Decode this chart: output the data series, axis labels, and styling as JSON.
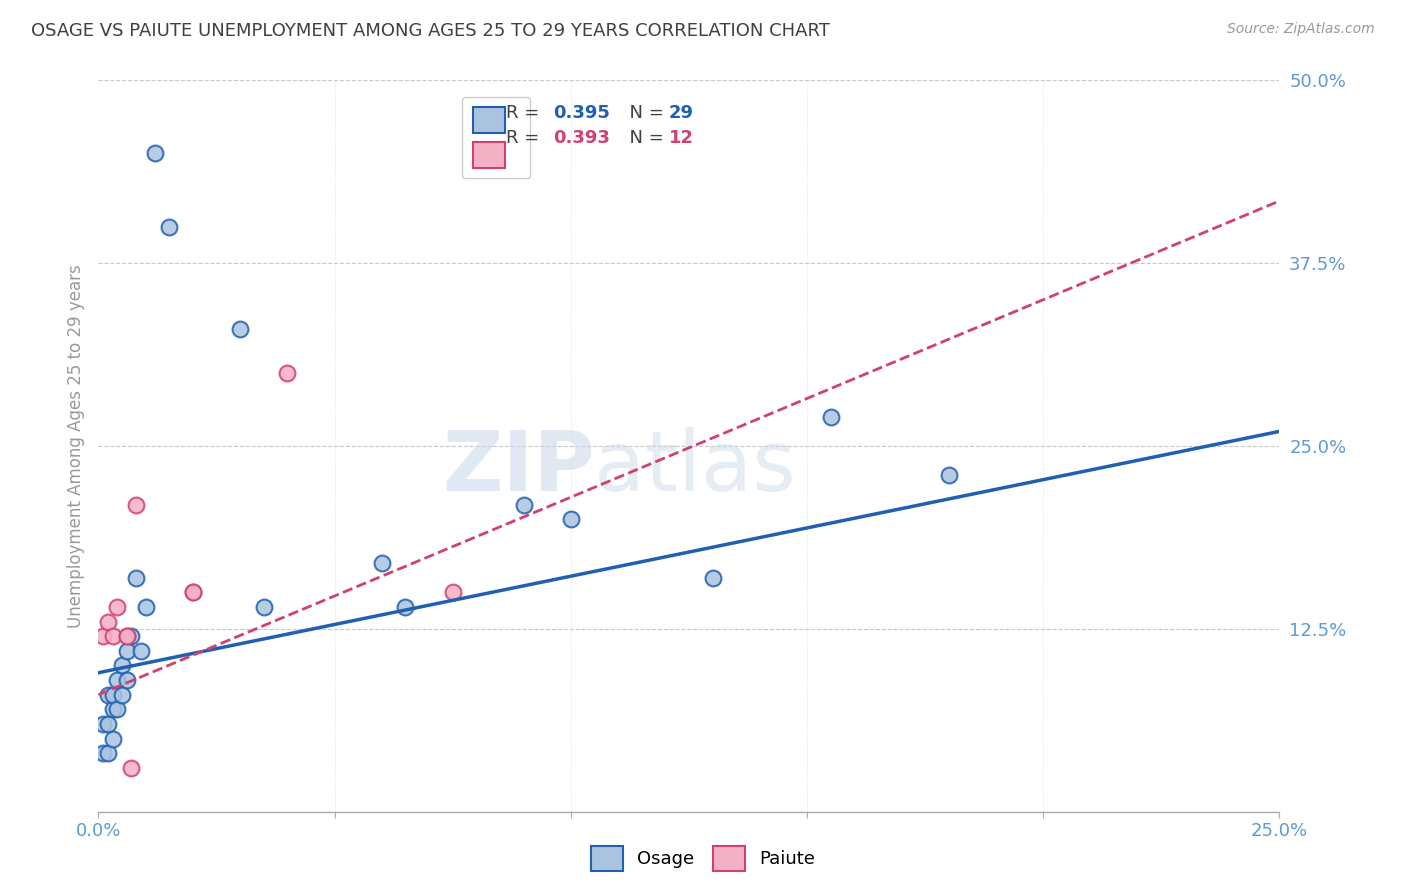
{
  "title": "OSAGE VS PAIUTE UNEMPLOYMENT AMONG AGES 25 TO 29 YEARS CORRELATION CHART",
  "source": "Source: ZipAtlas.com",
  "ylabel": "Unemployment Among Ages 25 to 29 years",
  "xlim": [
    0.0,
    0.25
  ],
  "ylim": [
    0.0,
    0.5
  ],
  "xticks": [
    0.0,
    0.05,
    0.1,
    0.15,
    0.2,
    0.25
  ],
  "yticks": [
    0.0,
    0.125,
    0.25,
    0.375,
    0.5
  ],
  "xticklabels": [
    "0.0%",
    "",
    "",
    "",
    "",
    "25.0%"
  ],
  "yticklabels": [
    "",
    "12.5%",
    "25.0%",
    "37.5%",
    "50.0%"
  ],
  "osage_R": 0.395,
  "osage_N": 29,
  "paiute_R": 0.393,
  "paiute_N": 12,
  "osage_color": "#aac4e0",
  "osage_line_color": "#2060b0",
  "paiute_color": "#f4b0c4",
  "paiute_line_color": "#d04070",
  "background_color": "#ffffff",
  "grid_color": "#c8c8c8",
  "axis_label_color": "#5b9bd5",
  "title_color": "#404040",
  "osage_x": [
    0.001,
    0.001,
    0.002,
    0.002,
    0.002,
    0.003,
    0.003,
    0.003,
    0.004,
    0.004,
    0.005,
    0.005,
    0.006,
    0.006,
    0.007,
    0.008,
    0.009,
    0.01,
    0.012,
    0.015,
    0.03,
    0.035,
    0.06,
    0.065,
    0.09,
    0.1,
    0.13,
    0.155,
    0.18
  ],
  "osage_y": [
    0.04,
    0.06,
    0.04,
    0.06,
    0.08,
    0.05,
    0.07,
    0.08,
    0.07,
    0.09,
    0.08,
    0.1,
    0.09,
    0.11,
    0.12,
    0.16,
    0.11,
    0.14,
    0.45,
    0.4,
    0.33,
    0.14,
    0.17,
    0.14,
    0.21,
    0.2,
    0.16,
    0.27,
    0.23
  ],
  "paiute_x": [
    0.001,
    0.002,
    0.003,
    0.004,
    0.006,
    0.006,
    0.007,
    0.008,
    0.02,
    0.02,
    0.04,
    0.075
  ],
  "paiute_y": [
    0.12,
    0.13,
    0.12,
    0.14,
    0.12,
    0.12,
    0.03,
    0.21,
    0.15,
    0.15,
    0.3,
    0.15
  ],
  "marker_size": 130,
  "marker_edge_width": 1.5,
  "osage_line_intercept": 0.095,
  "osage_line_slope": 0.66,
  "paiute_line_intercept": 0.08,
  "paiute_line_slope": 1.35
}
